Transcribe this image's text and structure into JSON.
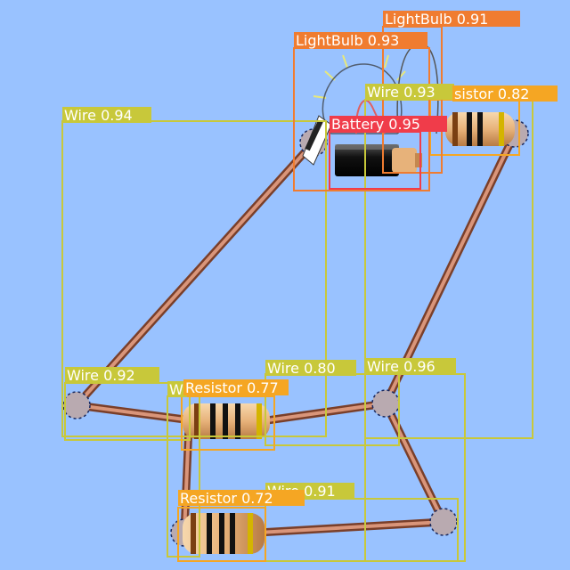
{
  "detections": [
    {
      "label": "Wire 0.94",
      "color": "#c8c83a"
    },
    {
      "label": "Wire 0.92",
      "color": "#c8c83a"
    },
    {
      "label": "Wire 0.80",
      "color": "#c8c83a"
    },
    {
      "label": "Wire 0.96",
      "color": "#c8c83a"
    },
    {
      "label": "Wire 0.93",
      "color": "#c8c83a"
    },
    {
      "label": "Wire 0.91",
      "color": "#c8c83a"
    },
    {
      "label": "Wi",
      "color": "#c8c83a"
    },
    {
      "label": "Resistor 0.77",
      "color": "#f5a623"
    },
    {
      "label": "Resistor 0.72",
      "color": "#f5a623"
    },
    {
      "label": "sistor 0.82",
      "color": "#f5a623"
    },
    {
      "label": "LightBulb 0.93",
      "color": "#f07c30"
    },
    {
      "label": "LightBulb 0.91",
      "color": "#f07c30"
    },
    {
      "label": "Battery 0.95",
      "color": "#f03c4a"
    }
  ],
  "icons": {
    "resistor": "resistor-icon",
    "bulb": "lightbulb-icon",
    "battery": "battery-icon",
    "wire": "wire-icon"
  }
}
